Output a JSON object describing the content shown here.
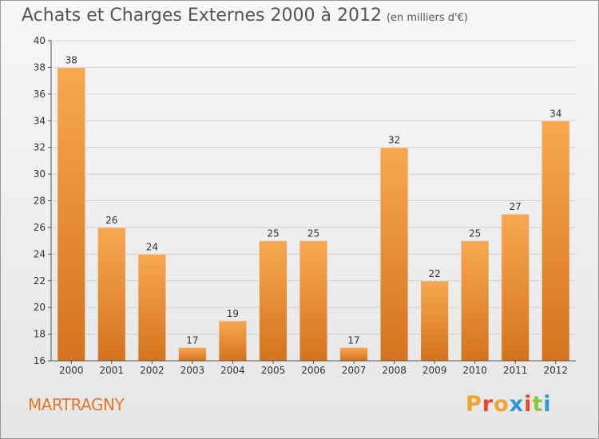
{
  "title": "Achats et Charges Externes 2000 à 2012",
  "subtitle": "(en milliers d'€)",
  "place_name": "MARTRAGNY",
  "logo": {
    "letters": [
      "P",
      "r",
      "o",
      "x",
      "i",
      "t",
      "i"
    ],
    "colors": [
      "#f2a32f",
      "#e8462b",
      "#f2a32f",
      "#2b9ad8",
      "#e8462b",
      "#8cc63f",
      "#2b9ad8"
    ]
  },
  "colors": {
    "bar_light": "#f7a851",
    "bar_dark": "#d4731d",
    "grid": "#cfcfcf",
    "axis": "#555555"
  },
  "chart_data": {
    "type": "bar",
    "categories": [
      "2000",
      "2001",
      "2002",
      "2003",
      "2004",
      "2005",
      "2006",
      "2007",
      "2008",
      "2009",
      "2010",
      "2011",
      "2012"
    ],
    "values": [
      38,
      26,
      24,
      17,
      19,
      25,
      25,
      17,
      32,
      22,
      25,
      27,
      34
    ],
    "ylim": [
      16,
      40
    ],
    "yticks": [
      16,
      18,
      20,
      22,
      24,
      26,
      28,
      30,
      32,
      34,
      36,
      38,
      40
    ],
    "grid": true
  }
}
